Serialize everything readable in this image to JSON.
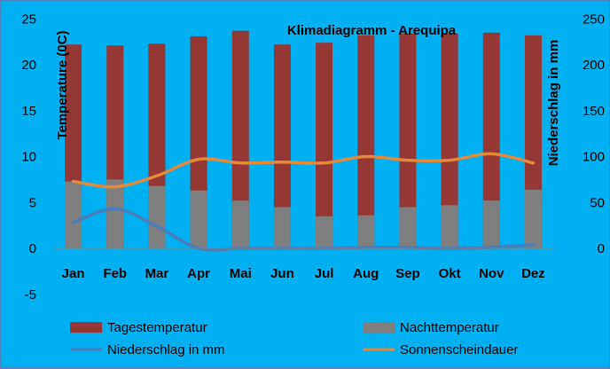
{
  "chart_data": {
    "type": "bar",
    "title": "Klimadiagramm -  Arequipa",
    "ylabel": "Temperature (0C)",
    "y2label": "Niederschlag in mm",
    "ylim": [
      -5,
      25
    ],
    "y2lim": [
      0,
      250
    ],
    "yticks": [
      "-5",
      "0",
      "5",
      "10",
      "15",
      "20",
      "25"
    ],
    "y2ticks": [
      "0",
      "50",
      "100",
      "150",
      "200",
      "250"
    ],
    "categories": [
      "Jan",
      "Feb",
      "Mar",
      "Apr",
      "Mai",
      "Jun",
      "Jul",
      "Aug",
      "Sep",
      "Okt",
      "Nov",
      "Dez"
    ],
    "grid": false,
    "legend_position": "bottom",
    "series": [
      {
        "name": "Tagestemperatur",
        "kind": "bar",
        "axis": "left",
        "color": "#953735",
        "values": [
          22.2,
          22.1,
          22.3,
          23.1,
          23.7,
          22.2,
          22.4,
          23.2,
          23.4,
          23.4,
          23.5,
          23.2
        ]
      },
      {
        "name": "Nachttemperatur",
        "kind": "bar",
        "axis": "left",
        "color": "#7f7f7f",
        "values": [
          7.3,
          7.5,
          6.8,
          6.3,
          5.2,
          4.5,
          3.5,
          3.6,
          4.5,
          4.7,
          5.2,
          6.4
        ]
      },
      {
        "name": "Niederschlag in mm",
        "kind": "line",
        "axis": "right",
        "color": "#4a7ebb",
        "values": [
          28,
          43,
          24,
          0,
          0,
          0,
          0,
          1,
          1,
          0,
          1,
          4
        ]
      },
      {
        "name": "Sonnenscheindauer",
        "kind": "line",
        "axis": "left",
        "color": "#e3893a",
        "values": [
          7.3,
          6.7,
          7.9,
          9.7,
          9.3,
          9.4,
          9.3,
          10.0,
          9.6,
          9.6,
          10.3,
          9.3
        ]
      }
    ]
  }
}
